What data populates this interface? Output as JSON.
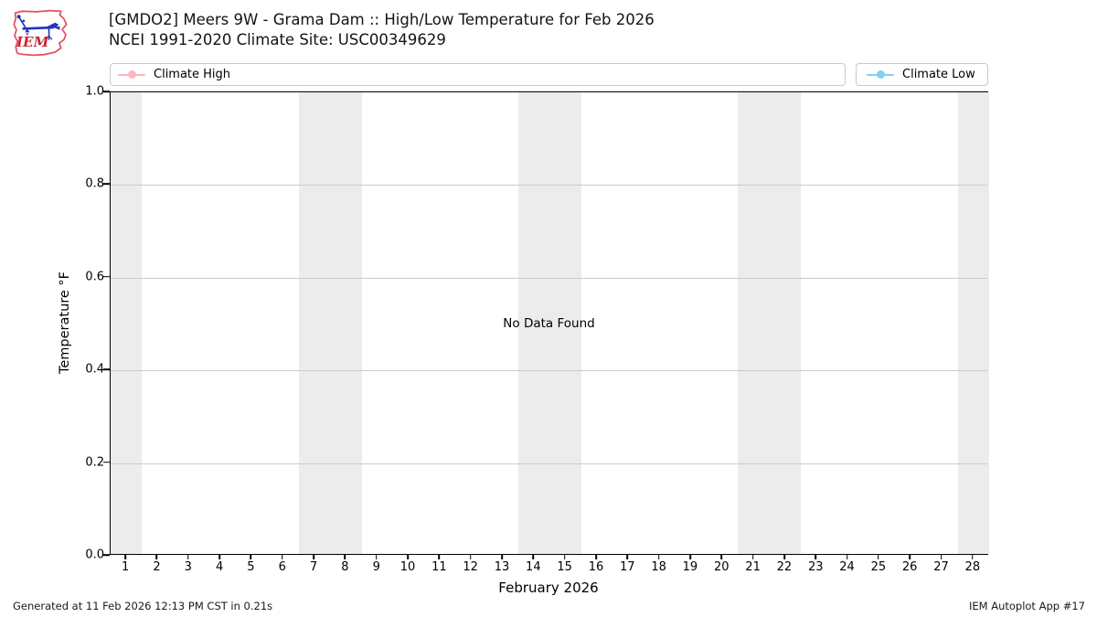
{
  "header": {
    "title_line1": "[GMDO2] Meers 9W - Grama Dam :: High/Low Temperature for Feb 2026",
    "title_line2": "NCEI 1991-2020 Climate Site: USC00349629",
    "logo_text": "IEM",
    "logo_colors": {
      "outline": "#e05060",
      "art": "#2233bb",
      "text": "#cc2233"
    }
  },
  "legend": {
    "entries": [
      {
        "label": "Climate High",
        "color": "#ffb6c1"
      },
      {
        "label": "Climate Low",
        "color": "#87ceeb"
      }
    ]
  },
  "chart_data": {
    "type": "line",
    "title": "[GMDO2] Meers 9W - Grama Dam :: High/Low Temperature for Feb 2026",
    "subtitle": "NCEI 1991-2020 Climate Site: USC00349629",
    "xlabel": "February 2026",
    "ylabel": "Temperature °F",
    "xlim": [
      0.5,
      28.5
    ],
    "ylim": [
      0.0,
      1.0
    ],
    "x_ticks": [
      1,
      2,
      3,
      4,
      5,
      6,
      7,
      8,
      9,
      10,
      11,
      12,
      13,
      14,
      15,
      16,
      17,
      18,
      19,
      20,
      21,
      22,
      23,
      24,
      25,
      26,
      27,
      28
    ],
    "x_tick_labels": [
      "1",
      "2",
      "3",
      "4",
      "5",
      "6",
      "7",
      "8",
      "9",
      "10",
      "11",
      "12",
      "13",
      "14",
      "15",
      "16",
      "17",
      "18",
      "19",
      "20",
      "21",
      "22",
      "23",
      "24",
      "25",
      "26",
      "27",
      "28"
    ],
    "y_ticks": [
      0.0,
      0.2,
      0.4,
      0.6,
      0.8,
      1.0
    ],
    "y_tick_labels": [
      "0.0",
      "0.2",
      "0.4",
      "0.6",
      "0.8",
      "1.0"
    ],
    "series": [
      {
        "name": "Climate High",
        "color": "#ffb6c1",
        "x": [],
        "values": []
      },
      {
        "name": "Climate Low",
        "color": "#87ceeb",
        "x": [],
        "values": []
      }
    ],
    "annotation": "No Data Found",
    "weekend_bands": [
      [
        0.5,
        1.5
      ],
      [
        6.5,
        8.5
      ],
      [
        13.5,
        15.5
      ],
      [
        20.5,
        22.5
      ],
      [
        27.5,
        28.5
      ]
    ],
    "band_color": "#ececec",
    "grid": "horizontal",
    "legend_position": "top"
  },
  "footer": {
    "generated": "Generated at 11 Feb 2026 12:13 PM CST in 0.21s",
    "app": "IEM Autoplot App #17"
  }
}
